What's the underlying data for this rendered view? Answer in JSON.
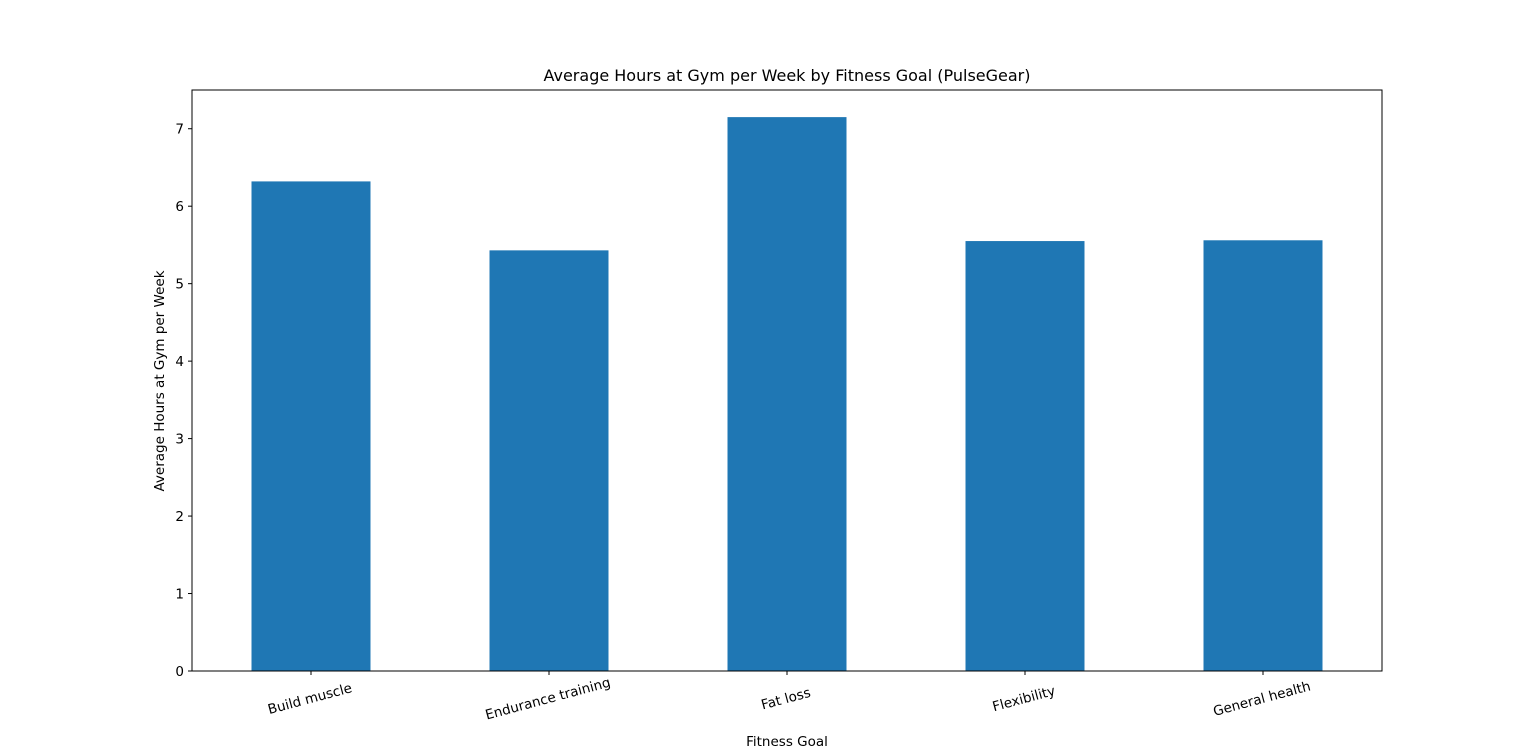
{
  "chart_data": {
    "type": "bar",
    "title": "Average Hours at Gym per Week by Fitness Goal (PulseGear)",
    "xlabel": "Fitness Goal",
    "ylabel": "Average Hours at Gym per Week",
    "categories": [
      "Build muscle",
      "Endurance training",
      "Fat loss",
      "Flexibility",
      "General health"
    ],
    "values": [
      6.32,
      5.43,
      7.15,
      5.55,
      5.56
    ],
    "ylim": [
      0,
      7.5
    ],
    "yticks": [
      0,
      1,
      2,
      3,
      4,
      5,
      6,
      7
    ],
    "bar_color": "#1f77b4",
    "grid": false,
    "legend": "none"
  }
}
